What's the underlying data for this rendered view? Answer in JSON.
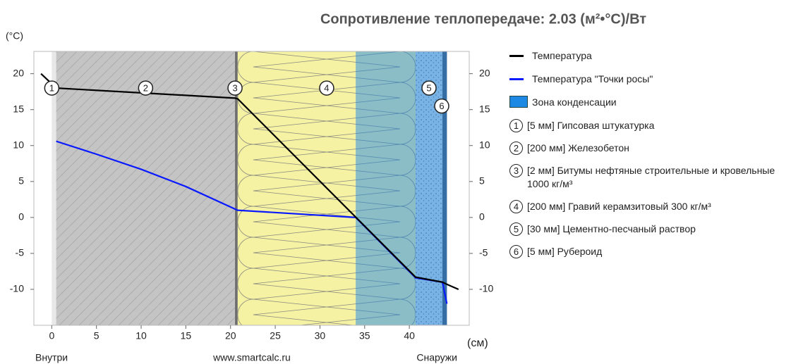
{
  "chart_data": {
    "type": "line",
    "title": "Сопротивление теплопередаче: 2.03 (м²•°C)/Вт",
    "y_label": "(°C)",
    "x_label": "(см)",
    "bottom_labels": [
      "Внутри",
      "www.smartcalc.ru",
      "Снаружи"
    ],
    "xlim": [
      -2,
      46.7
    ],
    "xticks": [
      0,
      5,
      10,
      15,
      20,
      25,
      30,
      35,
      40
    ],
    "ylim": [
      -15,
      23.1
    ],
    "yticks": [
      -10,
      -5,
      0,
      5,
      10,
      15,
      20
    ],
    "layers": [
      {
        "number": "1",
        "name": "[5 мм] Гипсовая штукатурка",
        "start": 0,
        "end": 0.5,
        "color": "#e8e8e8",
        "pattern": "none"
      },
      {
        "number": "2",
        "name": "[200 мм] Железобетон",
        "start": 0.5,
        "end": 20.5,
        "color": "#c4c4c4",
        "pattern": "hatch"
      },
      {
        "number": "3",
        "name": "[2 мм] Битумы нефтяные строительные и кровельные 1000 кг/м³",
        "start": 20.5,
        "end": 20.8,
        "color": "#6e6e6e",
        "pattern": "none"
      },
      {
        "number": "4",
        "name": "[200 мм] Гравий керамзитовый 300 кг/м³",
        "start": 20.8,
        "end": 40.7,
        "color": "#f6f2a4",
        "pattern": "waves"
      },
      {
        "number": "5",
        "name": "[30 мм] Цементно-песчаный раствор",
        "start": 40.7,
        "end": 43.7,
        "color": "#d4dde2",
        "pattern": "dots"
      },
      {
        "number": "6",
        "name": "[5 мм] Рубероид",
        "start": 43.7,
        "end": 44.2,
        "color": "#4a5562",
        "pattern": "none"
      }
    ],
    "condensation": {
      "name": "Зона конденсации",
      "start": 34,
      "end": 44.2,
      "color": "#1e88e5"
    },
    "series": [
      {
        "name": "Температура",
        "color": "#000000",
        "x": [
          -1.2,
          0.5,
          20.5,
          20.8,
          40.7,
          43.7,
          44.2,
          45.5
        ],
        "values": [
          20,
          18,
          16.6,
          16.5,
          -8.3,
          -9,
          -9.3,
          -10
        ]
      },
      {
        "name": "Температура \"Точки росы\"",
        "color": "#0a1aff",
        "x": [
          0.5,
          5,
          10,
          15,
          20.8,
          34,
          40.7,
          43.7,
          44.2
        ],
        "values": [
          10.6,
          8.8,
          6.7,
          4.3,
          1,
          0,
          -8.4,
          -9,
          -12
        ]
      }
    ]
  }
}
